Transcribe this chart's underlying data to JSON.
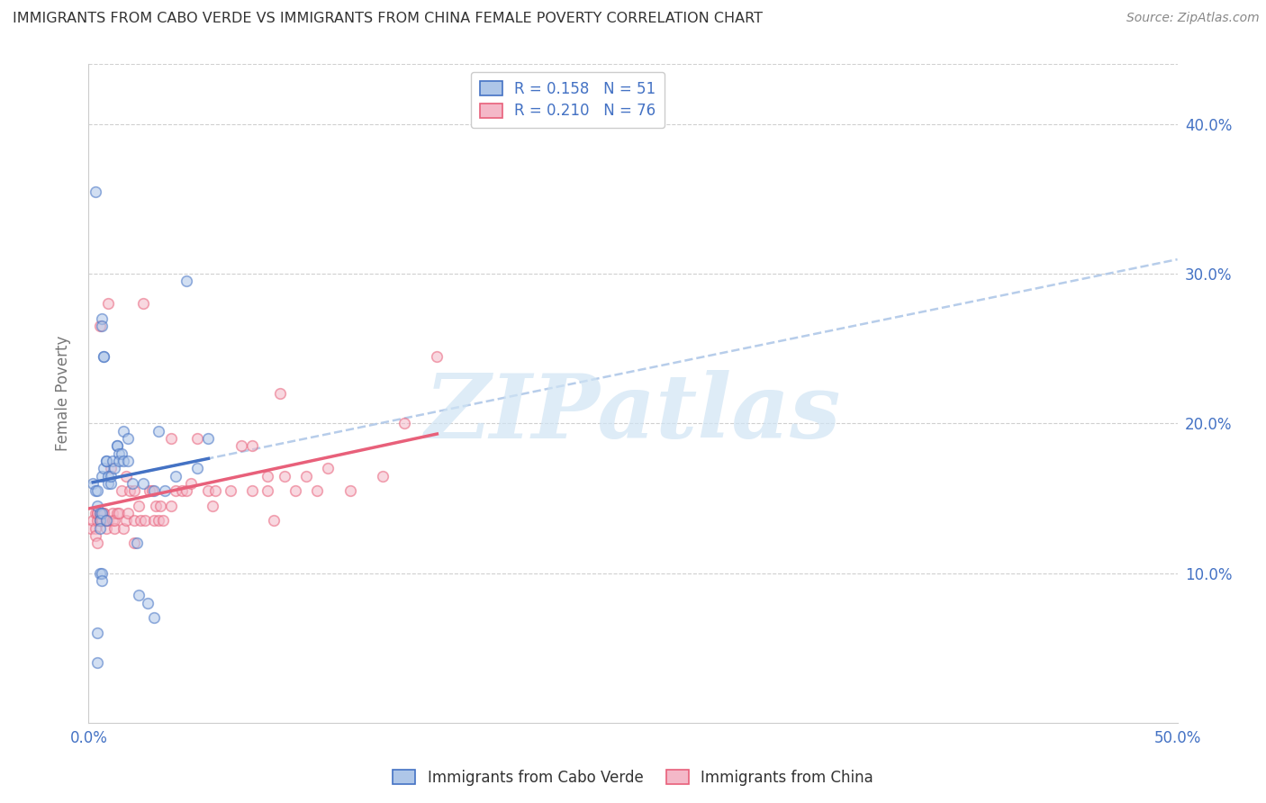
{
  "title": "IMMIGRANTS FROM CABO VERDE VS IMMIGRANTS FROM CHINA FEMALE POVERTY CORRELATION CHART",
  "source": "Source: ZipAtlas.com",
  "ylabel": "Female Poverty",
  "xlim": [
    0.0,
    0.5
  ],
  "ylim": [
    0.0,
    0.44
  ],
  "background_color": "#ffffff",
  "cabo_verde_fill_color": "#aec6e8",
  "china_fill_color": "#f4b8c8",
  "cabo_verde_edge_color": "#4472c4",
  "china_edge_color": "#e8607a",
  "cabo_verde_line_color": "#4472c4",
  "china_line_color": "#e8607a",
  "dashed_line_color": "#b0c8e8",
  "grid_color": "#d0d0d0",
  "axis_label_color": "#4472c4",
  "title_color": "#333333",
  "source_color": "#888888",
  "watermark_color": "#d0e4f4",
  "cabo_verde_R": 0.158,
  "cabo_verde_N": 51,
  "china_R": 0.21,
  "china_N": 76,
  "cabo_verde_label": "Immigrants from Cabo Verde",
  "china_label": "Immigrants from China",
  "marker_size": 70,
  "marker_alpha": 0.55,
  "marker_edgewidth": 1.2,
  "cabo_verde_x": [
    0.002,
    0.003,
    0.004,
    0.004,
    0.005,
    0.005,
    0.005,
    0.005,
    0.006,
    0.006,
    0.006,
    0.006,
    0.006,
    0.007,
    0.007,
    0.007,
    0.008,
    0.008,
    0.009,
    0.009,
    0.01,
    0.01,
    0.011,
    0.012,
    0.013,
    0.013,
    0.014,
    0.014,
    0.015,
    0.016,
    0.016,
    0.018,
    0.018,
    0.02,
    0.022,
    0.023,
    0.025,
    0.027,
    0.03,
    0.03,
    0.032,
    0.035,
    0.04,
    0.045,
    0.05,
    0.055,
    0.004,
    0.004,
    0.006,
    0.008,
    0.003
  ],
  "cabo_verde_y": [
    0.16,
    0.155,
    0.155,
    0.145,
    0.14,
    0.135,
    0.13,
    0.1,
    0.1,
    0.095,
    0.165,
    0.27,
    0.265,
    0.245,
    0.245,
    0.17,
    0.175,
    0.175,
    0.165,
    0.16,
    0.16,
    0.165,
    0.175,
    0.17,
    0.185,
    0.185,
    0.18,
    0.175,
    0.18,
    0.195,
    0.175,
    0.19,
    0.175,
    0.16,
    0.12,
    0.085,
    0.16,
    0.08,
    0.07,
    0.155,
    0.195,
    0.155,
    0.165,
    0.295,
    0.17,
    0.19,
    0.06,
    0.04,
    0.14,
    0.135,
    0.355
  ],
  "china_x": [
    0.001,
    0.002,
    0.003,
    0.003,
    0.003,
    0.004,
    0.004,
    0.004,
    0.004,
    0.005,
    0.005,
    0.005,
    0.005,
    0.006,
    0.006,
    0.006,
    0.007,
    0.007,
    0.008,
    0.008,
    0.009,
    0.009,
    0.01,
    0.011,
    0.011,
    0.012,
    0.012,
    0.013,
    0.014,
    0.015,
    0.016,
    0.017,
    0.017,
    0.018,
    0.019,
    0.021,
    0.021,
    0.021,
    0.023,
    0.024,
    0.025,
    0.026,
    0.028,
    0.029,
    0.03,
    0.031,
    0.032,
    0.033,
    0.034,
    0.038,
    0.038,
    0.04,
    0.043,
    0.045,
    0.047,
    0.05,
    0.055,
    0.057,
    0.058,
    0.065,
    0.07,
    0.075,
    0.075,
    0.082,
    0.082,
    0.085,
    0.088,
    0.09,
    0.095,
    0.1,
    0.105,
    0.11,
    0.12,
    0.135,
    0.145,
    0.16
  ],
  "china_y": [
    0.13,
    0.135,
    0.13,
    0.125,
    0.14,
    0.14,
    0.135,
    0.12,
    0.14,
    0.135,
    0.135,
    0.14,
    0.265,
    0.135,
    0.14,
    0.135,
    0.14,
    0.14,
    0.13,
    0.135,
    0.135,
    0.28,
    0.17,
    0.135,
    0.14,
    0.13,
    0.135,
    0.14,
    0.14,
    0.155,
    0.13,
    0.135,
    0.165,
    0.14,
    0.155,
    0.12,
    0.135,
    0.155,
    0.145,
    0.135,
    0.28,
    0.135,
    0.155,
    0.155,
    0.135,
    0.145,
    0.135,
    0.145,
    0.135,
    0.145,
    0.19,
    0.155,
    0.155,
    0.155,
    0.16,
    0.19,
    0.155,
    0.145,
    0.155,
    0.155,
    0.185,
    0.155,
    0.185,
    0.155,
    0.165,
    0.135,
    0.22,
    0.165,
    0.155,
    0.165,
    0.155,
    0.17,
    0.155,
    0.165,
    0.2,
    0.245
  ],
  "ytick_positions": [
    0.1,
    0.2,
    0.3,
    0.4
  ],
  "ytick_labels": [
    "10.0%",
    "20.0%",
    "30.0%",
    "40.0%"
  ],
  "xtick_positions": [
    0.0,
    0.5
  ],
  "xtick_labels": [
    "0.0%",
    "50.0%"
  ]
}
